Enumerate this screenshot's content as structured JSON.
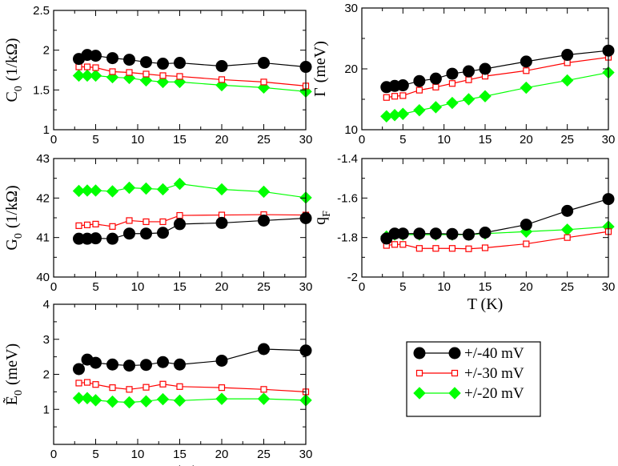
{
  "chart_data": [
    {
      "type": "line",
      "panel": "top-left",
      "ylabel_main": "C",
      "ylabel_sub": "0",
      "ylabel_unit": "(1/kΩ)",
      "xlabel": "",
      "xlim": [
        0,
        30
      ],
      "ylim": [
        1,
        2.5
      ],
      "xticks": [
        0,
        5,
        10,
        15,
        20,
        25,
        30
      ],
      "yticks": [
        1,
        1.5,
        2,
        2.5
      ],
      "yticklabels": [
        "1",
        "1.5",
        "2",
        "2.5"
      ],
      "series": [
        {
          "key": "s40",
          "x": [
            3,
            4,
            5,
            7,
            9,
            11,
            13,
            15,
            20,
            25,
            30
          ],
          "y": [
            1.89,
            1.94,
            1.93,
            1.9,
            1.88,
            1.85,
            1.83,
            1.84,
            1.8,
            1.84,
            1.79
          ]
        },
        {
          "key": "s30",
          "x": [
            3,
            4,
            5,
            7,
            9,
            11,
            13,
            15,
            20,
            25,
            30
          ],
          "y": [
            1.79,
            1.79,
            1.78,
            1.73,
            1.72,
            1.7,
            1.68,
            1.67,
            1.63,
            1.6,
            1.55
          ]
        },
        {
          "key": "s20",
          "x": [
            3,
            4,
            5,
            7,
            9,
            11,
            13,
            15,
            20,
            25,
            30
          ],
          "y": [
            1.68,
            1.68,
            1.68,
            1.66,
            1.65,
            1.62,
            1.6,
            1.6,
            1.56,
            1.53,
            1.48
          ]
        }
      ]
    },
    {
      "type": "line",
      "panel": "top-right",
      "ylabel_main": "Γ",
      "ylabel_sub": "",
      "ylabel_unit": "(meV)",
      "xlabel": "",
      "xlim": [
        0,
        30
      ],
      "ylim": [
        10,
        30
      ],
      "xticks": [
        0,
        5,
        10,
        15,
        20,
        25,
        30
      ],
      "yticks": [
        10,
        20,
        30
      ],
      "yticklabels": [
        "10",
        "20",
        "30"
      ],
      "series": [
        {
          "key": "s40",
          "x": [
            3,
            4,
            5,
            7,
            9,
            11,
            13,
            15,
            20,
            25,
            30
          ],
          "y": [
            17.0,
            17.2,
            17.3,
            18.0,
            18.4,
            19.2,
            19.6,
            20.0,
            21.2,
            22.3,
            23.0
          ]
        },
        {
          "key": "s30",
          "x": [
            3,
            4,
            5,
            7,
            9,
            11,
            13,
            15,
            20,
            25,
            30
          ],
          "y": [
            15.3,
            15.5,
            15.6,
            16.5,
            17.0,
            17.6,
            18.2,
            18.8,
            19.7,
            21.0,
            21.9
          ]
        },
        {
          "key": "s20",
          "x": [
            3,
            4,
            5,
            7,
            9,
            11,
            13,
            15,
            20,
            25,
            30
          ],
          "y": [
            12.2,
            12.4,
            12.6,
            13.2,
            13.7,
            14.4,
            15.0,
            15.5,
            16.9,
            18.1,
            19.4
          ]
        }
      ]
    },
    {
      "type": "line",
      "panel": "middle-left",
      "ylabel_main": "G",
      "ylabel_sub": "0",
      "ylabel_unit": "(1/kΩ)",
      "xlabel": "",
      "xlim": [
        0,
        30
      ],
      "ylim": [
        40,
        43
      ],
      "xticks": [
        0,
        5,
        10,
        15,
        20,
        25,
        30
      ],
      "yticks": [
        40,
        41,
        42,
        43
      ],
      "yticklabels": [
        "40",
        "41",
        "42",
        "43"
      ],
      "series": [
        {
          "key": "s40",
          "x": [
            3,
            4,
            5,
            7,
            9,
            11,
            13,
            15,
            20,
            25,
            30
          ],
          "y": [
            40.97,
            40.97,
            40.98,
            40.97,
            41.1,
            41.1,
            41.12,
            41.34,
            41.37,
            41.43,
            41.49
          ]
        },
        {
          "key": "s30",
          "x": [
            3,
            4,
            5,
            7,
            9,
            11,
            13,
            15,
            20,
            25,
            30
          ],
          "y": [
            41.3,
            41.32,
            41.34,
            41.28,
            41.43,
            41.4,
            41.4,
            41.56,
            41.57,
            41.58,
            41.57
          ]
        },
        {
          "key": "s20",
          "x": [
            3,
            4,
            5,
            7,
            9,
            11,
            13,
            15,
            20,
            25,
            30
          ],
          "y": [
            42.18,
            42.19,
            42.19,
            42.17,
            42.26,
            42.24,
            42.22,
            42.36,
            42.22,
            42.16,
            42.01
          ]
        }
      ]
    },
    {
      "type": "line",
      "panel": "middle-right",
      "ylabel_main": "q",
      "ylabel_sub": "F",
      "ylabel_unit": "",
      "xlabel": "T (K)",
      "xlim": [
        0,
        30
      ],
      "ylim": [
        -2,
        -1.4
      ],
      "xticks": [
        0,
        5,
        10,
        15,
        20,
        25,
        30
      ],
      "yticks": [
        -2,
        -1.8,
        -1.6,
        -1.4
      ],
      "yticklabels": [
        "-2",
        "-1.8",
        "-1.6",
        "-1.4"
      ],
      "series": [
        {
          "key": "s40",
          "x": [
            3,
            4,
            5,
            7,
            9,
            11,
            13,
            15,
            20,
            25,
            30
          ],
          "y": [
            -1.805,
            -1.78,
            -1.78,
            -1.78,
            -1.78,
            -1.782,
            -1.785,
            -1.775,
            -1.735,
            -1.665,
            -1.605
          ]
        },
        {
          "key": "s30",
          "x": [
            3,
            4,
            5,
            7,
            9,
            11,
            13,
            15,
            20,
            25,
            30
          ],
          "y": [
            -1.84,
            -1.835,
            -1.835,
            -1.855,
            -1.855,
            -1.855,
            -1.857,
            -1.852,
            -1.832,
            -1.8,
            -1.77
          ]
        },
        {
          "key": "s20",
          "x": [
            3,
            4,
            5,
            7,
            9,
            11,
            13,
            15,
            20,
            25,
            30
          ],
          "y": [
            -1.795,
            -1.785,
            -1.785,
            -1.785,
            -1.785,
            -1.785,
            -1.785,
            -1.78,
            -1.77,
            -1.76,
            -1.745
          ]
        }
      ]
    },
    {
      "type": "line",
      "panel": "bottom-left",
      "ylabel_main": "Ẽ",
      "ylabel_sub": "0",
      "ylabel_unit": "(meV)",
      "xlabel": "T (K)",
      "xlim": [
        0,
        30
      ],
      "ylim": [
        0,
        4
      ],
      "xticks": [
        0,
        5,
        10,
        15,
        20,
        25,
        30
      ],
      "yticks": [
        0,
        1,
        2,
        3,
        4
      ],
      "yticklabels": [
        "",
        "1",
        "2",
        "3",
        "4"
      ],
      "series": [
        {
          "key": "s40",
          "x": [
            3,
            4,
            5,
            7,
            9,
            11,
            13,
            15,
            20,
            25,
            30
          ],
          "y": [
            2.15,
            2.42,
            2.33,
            2.28,
            2.25,
            2.27,
            2.35,
            2.28,
            2.39,
            2.72,
            2.68
          ]
        },
        {
          "key": "s30",
          "x": [
            3,
            4,
            5,
            7,
            9,
            11,
            13,
            15,
            20,
            25,
            30
          ],
          "y": [
            1.75,
            1.77,
            1.71,
            1.62,
            1.57,
            1.63,
            1.72,
            1.65,
            1.62,
            1.57,
            1.5
          ]
        },
        {
          "key": "s20",
          "x": [
            3,
            4,
            5,
            7,
            9,
            11,
            13,
            15,
            20,
            25,
            30
          ],
          "y": [
            1.32,
            1.32,
            1.26,
            1.22,
            1.2,
            1.23,
            1.29,
            1.25,
            1.3,
            1.3,
            1.26
          ]
        }
      ]
    }
  ],
  "legend": [
    {
      "key": "s40",
      "label": "+/-40 mV",
      "color": "#000000",
      "marker": "circle"
    },
    {
      "key": "s30",
      "label": "+/-30 mV",
      "color": "#ff0000",
      "marker": "square-open"
    },
    {
      "key": "s20",
      "label": "+/-20 mV",
      "color": "#00ff00",
      "marker": "diamond"
    }
  ],
  "colors": {
    "axis": "#000000",
    "background": "#ffffff"
  }
}
